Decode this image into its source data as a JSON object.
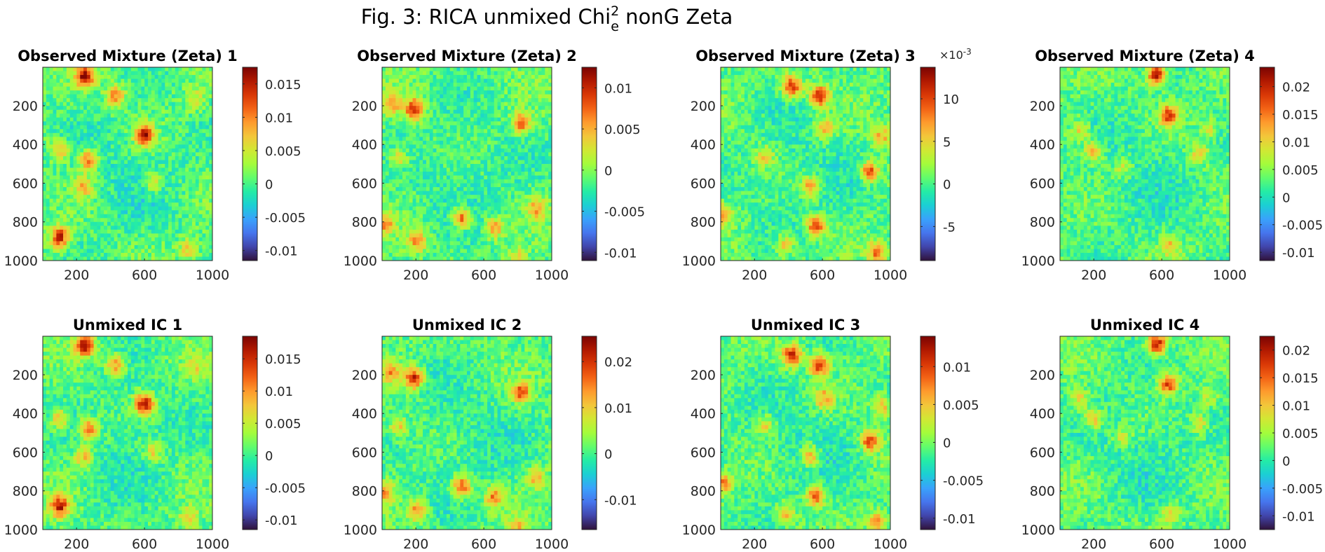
{
  "figure": {
    "title_main": "Fig. 3: RICA unmixed Chi",
    "title_sup": "2",
    "title_sub": "e",
    "title_tail": " nonG Zeta"
  },
  "colormap": [
    "#30123b",
    "#4145ab",
    "#4675ed",
    "#39a2fc",
    "#1bcfd4",
    "#24eca6",
    "#61fc6c",
    "#a4fc3b",
    "#d1e834",
    "#f3c63a",
    "#fe9b2d",
    "#f36315",
    "#d93806",
    "#b11901",
    "#7a0402"
  ],
  "chart_data": [
    {
      "type": "heatmap",
      "title": "Observed Mixture (Zeta) 1",
      "x_ticks": [
        200,
        600,
        1000
      ],
      "y_ticks": [
        200,
        400,
        600,
        800,
        1000
      ],
      "xlim": [
        1,
        1000
      ],
      "ylim": [
        1,
        1000
      ],
      "clim": [
        -0.0115,
        0.0175
      ],
      "colorbar_ticks": [
        -0.01,
        -0.005,
        0,
        0.005,
        0.01,
        0.015
      ],
      "colorbar_labels": [
        "-0.01",
        "-0.005",
        "0",
        "0.005",
        "0.01",
        "0.015"
      ],
      "colorbar_exponent": "",
      "blobs": [
        [
          250,
          50,
          1.0
        ],
        [
          600,
          350,
          1.0
        ],
        [
          100,
          880,
          0.9
        ],
        [
          430,
          150,
          0.6
        ],
        [
          270,
          480,
          0.7
        ],
        [
          100,
          430,
          0.5
        ],
        [
          240,
          620,
          0.5
        ],
        [
          650,
          600,
          0.4
        ],
        [
          860,
          940,
          0.4
        ],
        [
          900,
          170,
          0.3
        ]
      ]
    },
    {
      "type": "heatmap",
      "title": "Observed Mixture (Zeta) 2",
      "x_ticks": [
        200,
        600,
        1000
      ],
      "y_ticks": [
        200,
        400,
        600,
        800,
        1000
      ],
      "xlim": [
        1,
        1000
      ],
      "ylim": [
        1,
        1000
      ],
      "clim": [
        -0.011,
        0.0125
      ],
      "colorbar_ticks": [
        -0.01,
        -0.005,
        0,
        0.005,
        0.01
      ],
      "colorbar_labels": [
        "-0.01",
        "-0.005",
        "0",
        "0.005",
        "0.01"
      ],
      "colorbar_exponent": "",
      "blobs": [
        [
          190,
          220,
          0.9
        ],
        [
          820,
          290,
          0.7
        ],
        [
          470,
          780,
          0.8
        ],
        [
          210,
          900,
          0.6
        ],
        [
          660,
          830,
          0.6
        ],
        [
          20,
          810,
          0.5
        ],
        [
          100,
          470,
          0.4
        ],
        [
          910,
          730,
          0.5
        ],
        [
          60,
          190,
          0.5
        ],
        [
          800,
          990,
          0.4
        ]
      ]
    },
    {
      "type": "heatmap",
      "title": "Observed Mixture (Zeta) 3",
      "x_ticks": [
        200,
        600,
        1000
      ],
      "y_ticks": [
        200,
        400,
        600,
        800,
        1000
      ],
      "xlim": [
        1,
        1000
      ],
      "ylim": [
        1,
        1000
      ],
      "clim": [
        -0.009,
        0.0137
      ],
      "colorbar_ticks": [
        -0.005,
        0,
        0.005,
        0.01
      ],
      "colorbar_labels": [
        "-5",
        "0",
        "5",
        "10"
      ],
      "colorbar_exponent": "×10",
      "colorbar_exponent_power": "-3",
      "blobs": [
        [
          420,
          100,
          0.9
        ],
        [
          580,
          150,
          0.9
        ],
        [
          880,
          540,
          0.8
        ],
        [
          560,
          820,
          0.8
        ],
        [
          10,
          760,
          0.6
        ],
        [
          530,
          620,
          0.6
        ],
        [
          950,
          360,
          0.5
        ],
        [
          610,
          320,
          0.5
        ],
        [
          380,
          920,
          0.5
        ],
        [
          920,
          960,
          0.6
        ],
        [
          260,
          460,
          0.4
        ]
      ]
    },
    {
      "type": "heatmap",
      "title": "Observed Mixture (Zeta) 4",
      "x_ticks": [
        200,
        600,
        1000
      ],
      "y_ticks": [
        200,
        400,
        600,
        800,
        1000
      ],
      "xlim": [
        1,
        1000
      ],
      "ylim": [
        1,
        1000
      ],
      "clim": [
        -0.0115,
        0.0235
      ],
      "colorbar_ticks": [
        -0.01,
        -0.005,
        0,
        0.005,
        0.01,
        0.015,
        0.02
      ],
      "colorbar_labels": [
        "-0.01",
        "-0.005",
        "0",
        "0.005",
        "0.01",
        "0.015",
        "0.02"
      ],
      "colorbar_exponent": "",
      "blobs": [
        [
          570,
          40,
          1.0
        ],
        [
          640,
          250,
          0.8
        ],
        [
          200,
          430,
          0.5
        ],
        [
          820,
          450,
          0.4
        ],
        [
          120,
          330,
          0.4
        ],
        [
          650,
          920,
          0.4
        ],
        [
          370,
          520,
          0.3
        ],
        [
          880,
          320,
          0.3
        ]
      ]
    },
    {
      "type": "heatmap",
      "title": "Unmixed IC 1",
      "x_ticks": [
        200,
        600,
        1000
      ],
      "y_ticks": [
        200,
        400,
        600,
        800,
        1000
      ],
      "xlim": [
        1,
        1000
      ],
      "ylim": [
        1,
        1000
      ],
      "clim": [
        -0.0115,
        0.0185
      ],
      "colorbar_ticks": [
        -0.01,
        -0.005,
        0,
        0.005,
        0.01,
        0.015
      ],
      "colorbar_labels": [
        "-0.01",
        "-0.005",
        "0",
        "0.005",
        "0.01",
        "0.015"
      ],
      "colorbar_exponent": "",
      "blobs": [
        [
          250,
          50,
          1.0
        ],
        [
          600,
          350,
          1.0
        ],
        [
          100,
          880,
          0.9
        ],
        [
          430,
          150,
          0.6
        ],
        [
          270,
          480,
          0.7
        ],
        [
          100,
          430,
          0.5
        ],
        [
          240,
          620,
          0.5
        ],
        [
          650,
          600,
          0.4
        ],
        [
          860,
          940,
          0.4
        ],
        [
          900,
          170,
          0.3
        ]
      ]
    },
    {
      "type": "heatmap",
      "title": "Unmixed IC 2",
      "x_ticks": [
        200,
        600,
        1000
      ],
      "y_ticks": [
        200,
        400,
        600,
        800,
        1000
      ],
      "xlim": [
        1,
        1000
      ],
      "ylim": [
        1,
        1000
      ],
      "clim": [
        -0.0165,
        0.0255
      ],
      "colorbar_ticks": [
        -0.01,
        0,
        0.01,
        0.02
      ],
      "colorbar_labels": [
        "-0.01",
        "0",
        "0.01",
        "0.02"
      ],
      "colorbar_exponent": "",
      "blobs": [
        [
          190,
          220,
          0.9
        ],
        [
          820,
          290,
          0.7
        ],
        [
          470,
          780,
          0.8
        ],
        [
          210,
          900,
          0.6
        ],
        [
          660,
          830,
          0.6
        ],
        [
          20,
          810,
          0.5
        ],
        [
          100,
          470,
          0.4
        ],
        [
          910,
          730,
          0.5
        ],
        [
          60,
          190,
          0.5
        ],
        [
          800,
          990,
          0.4
        ]
      ]
    },
    {
      "type": "heatmap",
      "title": "Unmixed IC 3",
      "x_ticks": [
        200,
        600,
        1000
      ],
      "y_ticks": [
        200,
        400,
        600,
        800,
        1000
      ],
      "xlim": [
        1,
        1000
      ],
      "ylim": [
        1,
        1000
      ],
      "clim": [
        -0.0115,
        0.014
      ],
      "colorbar_ticks": [
        -0.01,
        -0.005,
        0,
        0.005,
        0.01
      ],
      "colorbar_labels": [
        "-0.01",
        "-0.005",
        "0",
        "0.005",
        "0.01"
      ],
      "colorbar_exponent": "",
      "blobs": [
        [
          420,
          100,
          0.9
        ],
        [
          580,
          150,
          0.9
        ],
        [
          880,
          540,
          0.8
        ],
        [
          560,
          820,
          0.8
        ],
        [
          10,
          760,
          0.6
        ],
        [
          530,
          620,
          0.6
        ],
        [
          950,
          360,
          0.5
        ],
        [
          610,
          320,
          0.5
        ],
        [
          380,
          920,
          0.5
        ],
        [
          920,
          960,
          0.6
        ],
        [
          260,
          460,
          0.4
        ]
      ]
    },
    {
      "type": "heatmap",
      "title": "Unmixed IC 4",
      "x_ticks": [
        200,
        600,
        1000
      ],
      "y_ticks": [
        200,
        400,
        600,
        800,
        1000
      ],
      "xlim": [
        1,
        1000
      ],
      "ylim": [
        1,
        1000
      ],
      "clim": [
        -0.0125,
        0.0225
      ],
      "colorbar_ticks": [
        -0.01,
        -0.005,
        0,
        0.005,
        0.01,
        0.015,
        0.02
      ],
      "colorbar_labels": [
        "-0.01",
        "-0.005",
        "0",
        "0.005",
        "0.01",
        "0.015",
        "0.02"
      ],
      "colorbar_exponent": "",
      "blobs": [
        [
          570,
          40,
          1.0
        ],
        [
          640,
          250,
          0.8
        ],
        [
          200,
          430,
          0.5
        ],
        [
          820,
          450,
          0.4
        ],
        [
          120,
          330,
          0.4
        ],
        [
          650,
          920,
          0.4
        ],
        [
          370,
          520,
          0.3
        ],
        [
          880,
          320,
          0.3
        ]
      ]
    }
  ]
}
